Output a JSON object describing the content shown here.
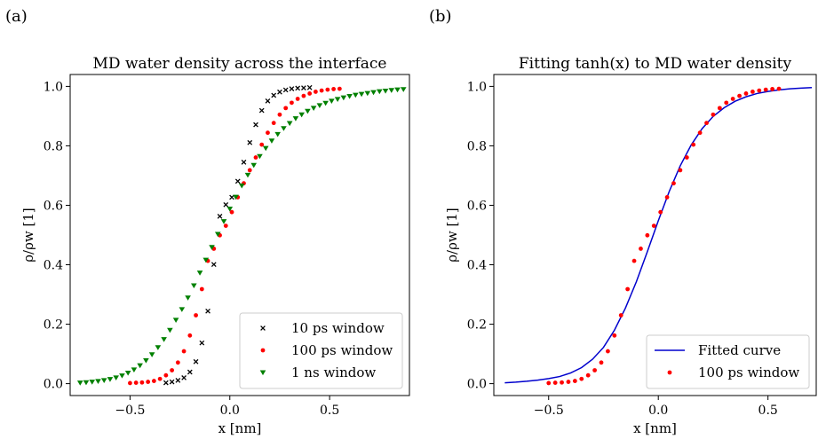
{
  "panels": [
    {
      "label": "(a)"
    },
    {
      "label": "(b)"
    }
  ],
  "chart_data": [
    {
      "type": "scatter",
      "title": "MD water density across the interface",
      "xlabel": "x [nm]",
      "ylabel": "ρ/ρw [1]",
      "xlim": [
        -0.8,
        0.9
      ],
      "ylim": [
        -0.04,
        1.04
      ],
      "xticks": [
        -0.5,
        0.0,
        0.5
      ],
      "xtick_labels": [
        "−0.5",
        "0.0",
        "0.5"
      ],
      "yticks": [
        0.0,
        0.2,
        0.4,
        0.6,
        0.8,
        1.0
      ],
      "ytick_labels": [
        "0.0",
        "0.2",
        "0.4",
        "0.6",
        "0.8",
        "1.0"
      ],
      "grid": false,
      "legend_position": "lower-right",
      "series": [
        {
          "name": "10 ps window",
          "marker": "x",
          "color": "#000000",
          "x": [
            -0.32,
            -0.29,
            -0.26,
            -0.23,
            -0.2,
            -0.17,
            -0.14,
            -0.11,
            -0.08,
            -0.05,
            -0.02,
            0.01,
            0.04,
            0.07,
            0.1,
            0.13,
            0.16,
            0.19,
            0.22,
            0.25,
            0.28,
            0.31,
            0.34,
            0.37,
            0.4
          ],
          "y": [
            0.003,
            0.006,
            0.011,
            0.02,
            0.039,
            0.074,
            0.137,
            0.244,
            0.401,
            0.563,
            0.602,
            0.627,
            0.681,
            0.745,
            0.811,
            0.871,
            0.919,
            0.951,
            0.97,
            0.981,
            0.988,
            0.992,
            0.994,
            0.995,
            0.996
          ]
        },
        {
          "name": "100 ps window",
          "marker": "o",
          "color": "#ff0000",
          "x": [
            -0.5,
            -0.47,
            -0.44,
            -0.41,
            -0.38,
            -0.35,
            -0.32,
            -0.29,
            -0.26,
            -0.23,
            -0.2,
            -0.17,
            -0.14,
            -0.11,
            -0.08,
            -0.05,
            -0.02,
            0.01,
            0.04,
            0.07,
            0.1,
            0.13,
            0.16,
            0.19,
            0.22,
            0.25,
            0.28,
            0.31,
            0.34,
            0.37,
            0.4,
            0.43,
            0.46,
            0.49,
            0.52,
            0.55
          ],
          "y": [
            0.002,
            0.003,
            0.004,
            0.006,
            0.009,
            0.016,
            0.028,
            0.045,
            0.071,
            0.109,
            0.162,
            0.23,
            0.318,
            0.413,
            0.454,
            0.499,
            0.531,
            0.577,
            0.627,
            0.674,
            0.718,
            0.761,
            0.804,
            0.844,
            0.877,
            0.905,
            0.927,
            0.945,
            0.958,
            0.968,
            0.976,
            0.982,
            0.986,
            0.989,
            0.991,
            0.992
          ]
        },
        {
          "name": "1 ns window",
          "marker": "v",
          "color": "#008000",
          "x": [
            -0.75,
            -0.72,
            -0.69,
            -0.66,
            -0.63,
            -0.6,
            -0.57,
            -0.54,
            -0.51,
            -0.48,
            -0.45,
            -0.42,
            -0.39,
            -0.36,
            -0.33,
            -0.3,
            -0.27,
            -0.24,
            -0.21,
            -0.18,
            -0.15,
            -0.12,
            -0.09,
            -0.06,
            -0.03,
            0.0,
            0.03,
            0.06,
            0.09,
            0.12,
            0.15,
            0.18,
            0.21,
            0.24,
            0.27,
            0.3,
            0.33,
            0.36,
            0.39,
            0.42,
            0.45,
            0.48,
            0.51,
            0.54,
            0.57,
            0.6,
            0.63,
            0.66,
            0.69,
            0.72,
            0.75,
            0.78,
            0.81,
            0.84,
            0.87
          ],
          "y": [
            0.003,
            0.004,
            0.006,
            0.008,
            0.011,
            0.015,
            0.02,
            0.027,
            0.036,
            0.047,
            0.061,
            0.078,
            0.098,
            0.122,
            0.149,
            0.18,
            0.214,
            0.25,
            0.289,
            0.33,
            0.373,
            0.416,
            0.459,
            0.503,
            0.546,
            0.588,
            0.628,
            0.666,
            0.702,
            0.735,
            0.765,
            0.792,
            0.817,
            0.839,
            0.859,
            0.876,
            0.892,
            0.905,
            0.917,
            0.927,
            0.936,
            0.944,
            0.951,
            0.957,
            0.962,
            0.967,
            0.971,
            0.974,
            0.977,
            0.98,
            0.983,
            0.985,
            0.987,
            0.989,
            0.99
          ]
        }
      ]
    },
    {
      "type": "scatter",
      "title": "Fitting tanh(x) to MD water density",
      "xlabel": "x [nm]",
      "ylabel": "ρ/ρw [1]",
      "xlim": [
        -0.75,
        0.72
      ],
      "ylim": [
        -0.04,
        1.04
      ],
      "xticks": [
        -0.5,
        0.0,
        0.5
      ],
      "xtick_labels": [
        "−0.5",
        "0.0",
        "0.5"
      ],
      "yticks": [
        0.0,
        0.2,
        0.4,
        0.6,
        0.8,
        1.0
      ],
      "ytick_labels": [
        "0.0",
        "0.2",
        "0.4",
        "0.6",
        "0.8",
        "1.0"
      ],
      "grid": false,
      "legend_position": "lower-right",
      "series": [
        {
          "name": "Fitted curve",
          "type": "line",
          "color": "#0000cd",
          "x": [
            -0.7,
            -0.65,
            -0.6,
            -0.55,
            -0.5,
            -0.45,
            -0.4,
            -0.35,
            -0.3,
            -0.25,
            -0.2,
            -0.15,
            -0.1,
            -0.05,
            0.0,
            0.05,
            0.1,
            0.15,
            0.2,
            0.25,
            0.3,
            0.35,
            0.4,
            0.45,
            0.5,
            0.55,
            0.6,
            0.65,
            0.7
          ],
          "y": [
            0.003,
            0.005,
            0.008,
            0.012,
            0.017,
            0.024,
            0.036,
            0.054,
            0.082,
            0.122,
            0.18,
            0.254,
            0.343,
            0.444,
            0.548,
            0.647,
            0.733,
            0.803,
            0.858,
            0.899,
            0.928,
            0.95,
            0.965,
            0.976,
            0.983,
            0.988,
            0.992,
            0.994,
            0.996
          ]
        },
        {
          "name": "100 ps window",
          "type": "scatter",
          "marker": "o",
          "color": "#ff0000",
          "x": [
            -0.5,
            -0.47,
            -0.44,
            -0.41,
            -0.38,
            -0.35,
            -0.32,
            -0.29,
            -0.26,
            -0.23,
            -0.2,
            -0.17,
            -0.14,
            -0.11,
            -0.08,
            -0.05,
            -0.02,
            0.01,
            0.04,
            0.07,
            0.1,
            0.13,
            0.16,
            0.19,
            0.22,
            0.25,
            0.28,
            0.31,
            0.34,
            0.37,
            0.4,
            0.43,
            0.46,
            0.49,
            0.52,
            0.55
          ],
          "y": [
            0.002,
            0.003,
            0.004,
            0.006,
            0.009,
            0.016,
            0.028,
            0.045,
            0.071,
            0.109,
            0.162,
            0.23,
            0.318,
            0.413,
            0.454,
            0.499,
            0.531,
            0.577,
            0.627,
            0.674,
            0.718,
            0.761,
            0.804,
            0.844,
            0.877,
            0.905,
            0.927,
            0.945,
            0.958,
            0.968,
            0.976,
            0.982,
            0.986,
            0.989,
            0.991,
            0.992
          ]
        }
      ]
    }
  ]
}
